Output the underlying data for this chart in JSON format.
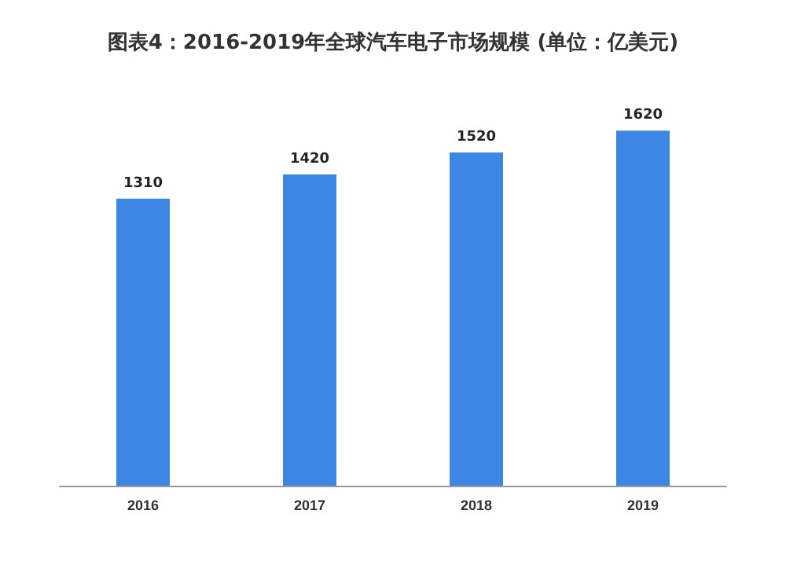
{
  "chart_data": {
    "type": "bar",
    "title": "图表4：2016-2019年全球汽车电子市场规模 (单位：亿美元)",
    "categories": [
      "2016",
      "2017",
      "2018",
      "2019"
    ],
    "values": [
      1310,
      1420,
      1520,
      1620
    ],
    "color": "#3d86e2",
    "data_labels": true,
    "grid": false
  }
}
